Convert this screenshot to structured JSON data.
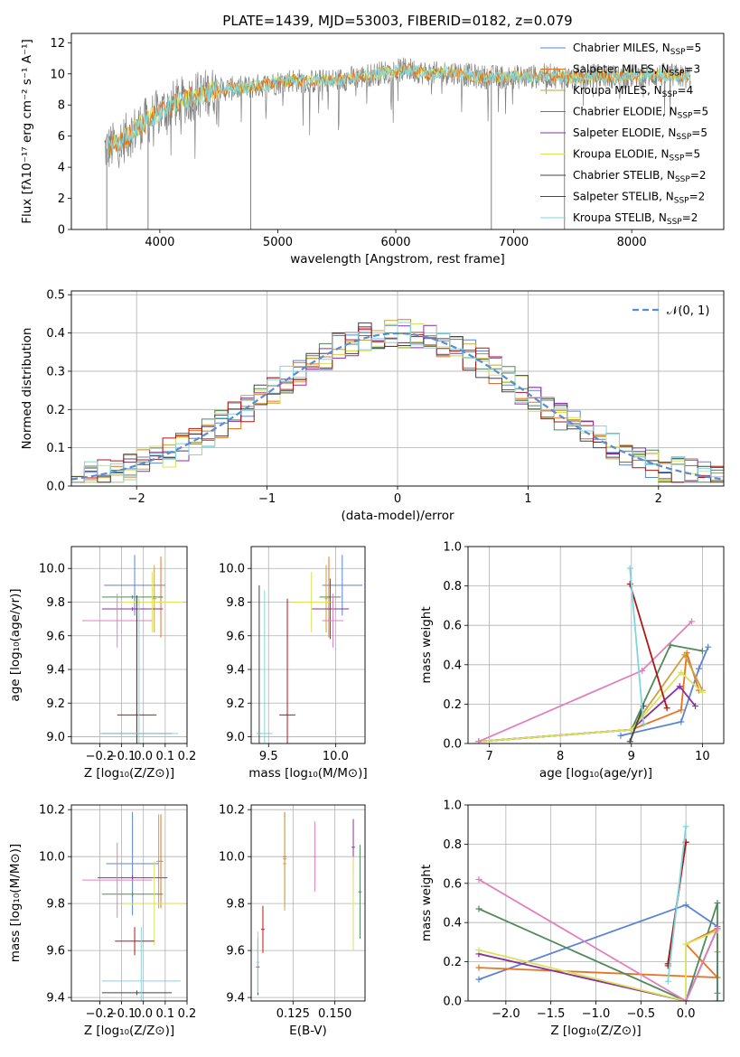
{
  "colors": {
    "Chabrier MILES": "#5b84d6",
    "Salpeter MILES": "#e8731d",
    "Kroupa MILES": "#c9a23f",
    "Chabrier ELODIE": "#4f8a5b",
    "Salpeter ELODIE": "#8b2fa6",
    "Kroupa ELODIE": "#d9e35a",
    "Chabrier STELIB": "#444444",
    "Salpeter STELIB": "#b01616",
    "Kroupa STELIB": "#7fd6dd",
    "pink": "#e07fbf",
    "gray_spectrum": "#808080",
    "grid": "#b0b0b0"
  },
  "chart_data": [
    {
      "id": "spectrum",
      "type": "line",
      "title": "PLATE=1439, MJD=53003, FIBERID=0182, z=0.079",
      "xlabel": "wavelength [Angstrom, rest frame]",
      "ylabel": "Flux [fλ10⁻¹⁷ erg cm⁻² s⁻¹ A⁻¹]",
      "xlim": [
        3250,
        8780
      ],
      "ylim": [
        0,
        12.6
      ],
      "xticks": [
        4000,
        5000,
        6000,
        7000,
        8000
      ],
      "yticks": [
        0,
        2,
        4,
        6,
        8,
        10,
        12
      ],
      "legend_position": "right",
      "legend": [
        {
          "text": "Chabrier MILES, N",
          "sub": "SSP",
          "tail": "=5"
        },
        {
          "text": "Salpeter MILES, N",
          "sub": "SSP",
          "tail": "=3"
        },
        {
          "text": "Kroupa MILES, N",
          "sub": "SSP",
          "tail": "=4"
        },
        {
          "text": "Chabrier ELODIE, N",
          "sub": "SSP",
          "tail": "=5"
        },
        {
          "text": "Salpeter ELODIE, N",
          "sub": "SSP",
          "tail": "=5"
        },
        {
          "text": "Kroupa ELODIE, N",
          "sub": "SSP",
          "tail": "=5"
        },
        {
          "text": "Chabrier STELIB, N",
          "sub": "SSP",
          "tail": "=2"
        },
        {
          "text": "Salpeter STELIB, N",
          "sub": "SSP",
          "tail": "=2"
        },
        {
          "text": "Kroupa STELIB, N",
          "sub": "SSP",
          "tail": "=2"
        }
      ],
      "continuum": [
        [
          3550,
          5.2
        ],
        [
          3650,
          5.5
        ],
        [
          3800,
          6.5
        ],
        [
          3950,
          7.3
        ],
        [
          4100,
          8.0
        ],
        [
          4300,
          8.6
        ],
        [
          4500,
          9.0
        ],
        [
          4700,
          9.1
        ],
        [
          4900,
          9.3
        ],
        [
          5100,
          9.6
        ],
        [
          5300,
          9.5
        ],
        [
          5500,
          9.6
        ],
        [
          5700,
          9.8
        ],
        [
          5900,
          10.1
        ],
        [
          6100,
          10.3
        ],
        [
          6300,
          10.0
        ],
        [
          6500,
          10.1
        ],
        [
          6700,
          9.8
        ],
        [
          6900,
          9.8
        ],
        [
          7100,
          9.8
        ],
        [
          7300,
          9.9
        ],
        [
          7500,
          9.7
        ],
        [
          7700,
          9.9
        ],
        [
          7900,
          9.8
        ],
        [
          8100,
          9.9
        ],
        [
          8300,
          9.9
        ],
        [
          8500,
          9.8
        ]
      ],
      "dips": [
        [
          3550,
          0
        ],
        [
          3900,
          0
        ],
        [
          4770,
          0
        ],
        [
          6810,
          0
        ],
        [
          7430,
          0
        ]
      ]
    },
    {
      "id": "residuals",
      "type": "line",
      "xlabel": "(data-model)/error",
      "ylabel": "Normed distribution",
      "xlim": [
        -2.5,
        2.5
      ],
      "ylim": [
        0,
        0.51
      ],
      "xticks": [
        -2,
        -1,
        0,
        1,
        2
      ],
      "yticks": [
        0.0,
        0.1,
        0.2,
        0.3,
        0.4,
        0.5
      ],
      "grid": true,
      "legend_position": "top-right",
      "legend": "𝒩(0, 1)",
      "gaussian": {
        "mean": 0,
        "sigma": 1
      }
    },
    {
      "id": "age_vs_Z",
      "type": "scatter",
      "xlabel": "Z [log₁₀(Z/Z⊙)]",
      "ylabel": "age  [log₁₀(age/yr)]",
      "xlim": [
        -0.33,
        0.2
      ],
      "ylim": [
        8.96,
        10.13
      ],
      "xticks": [
        -0.2,
        -0.1,
        0.0,
        0.1,
        0.2
      ],
      "yticks": [
        9.0,
        9.2,
        9.4,
        9.6,
        9.8,
        10.0
      ],
      "grid": true,
      "points": [
        {
          "s": "Chabrier MILES",
          "x": -0.04,
          "y": 9.9,
          "dx": 0.14,
          "dy": 0.18
        },
        {
          "s": "Salpeter MILES",
          "x": 0.08,
          "y": 9.83,
          "dx": 0.01,
          "dy": 0.24
        },
        {
          "s": "Kroupa MILES",
          "x": 0.05,
          "y": 9.82,
          "dx": 0.01,
          "dy": 0.2
        },
        {
          "s": "Chabrier ELODIE",
          "x": -0.05,
          "y": 9.83,
          "dx": 0.14,
          "dy": 0.01
        },
        {
          "s": "Salpeter ELODIE",
          "x": -0.05,
          "y": 9.76,
          "dx": 0.14,
          "dy": 0.01
        },
        {
          "s": "Kroupa ELODIE",
          "x": 0.04,
          "y": 9.8,
          "dx": 0.14,
          "dy": 0.18
        },
        {
          "s": "pink",
          "x": -0.12,
          "y": 9.69,
          "dx": 0.16,
          "dy": 0.16
        },
        {
          "s": "Chabrier STELIB",
          "x": -0.03,
          "y": 9.02,
          "dx": 0.16,
          "dy": 0.82
        },
        {
          "s": "Salpeter STELIB",
          "x": -0.03,
          "y": 9.13,
          "dx": 0.09,
          "dy": 0.69
        },
        {
          "s": "Kroupa STELIB",
          "x": -0.02,
          "y": 9.02,
          "dx": 0.18,
          "dy": 0.8
        }
      ]
    },
    {
      "id": "age_vs_mass",
      "type": "scatter",
      "xlabel": "mass [log₁₀(M/M⊙)]",
      "xlim": [
        9.37,
        10.22
      ],
      "ylim": [
        8.96,
        10.13
      ],
      "xticks": [
        9.5,
        10.0
      ],
      "yticks": [
        9.0,
        9.2,
        9.4,
        9.6,
        9.8,
        10.0
      ],
      "grid": true,
      "points": [
        {
          "s": "Chabrier MILES",
          "x": 10.05,
          "y": 9.9,
          "dx": 0.15,
          "dy": 0.18
        },
        {
          "s": "Salpeter MILES",
          "x": 9.95,
          "y": 9.83,
          "dx": 0.01,
          "dy": 0.24
        },
        {
          "s": "Kroupa MILES",
          "x": 9.93,
          "y": 9.82,
          "dx": 0.01,
          "dy": 0.2
        },
        {
          "s": "Chabrier ELODIE",
          "x": 9.96,
          "y": 9.83,
          "dx": 0.08,
          "dy": 0.01
        },
        {
          "s": "Salpeter ELODIE",
          "x": 9.96,
          "y": 9.76,
          "dx": 0.14,
          "dy": 0.18
        },
        {
          "s": "Kroupa ELODIE",
          "x": 9.82,
          "y": 9.8,
          "dx": 0.14,
          "dy": 0.18
        },
        {
          "s": "pink",
          "x": 9.98,
          "y": 9.69,
          "dx": 0.08,
          "dy": 0.16
        },
        {
          "s": "Chabrier STELIB",
          "x": 9.43,
          "y": 9.02,
          "dx": 0.01,
          "dy": 0.88
        },
        {
          "s": "Salpeter STELIB",
          "x": 9.64,
          "y": 9.13,
          "dx": 0.06,
          "dy": 0.69
        },
        {
          "s": "Kroupa STELIB",
          "x": 9.47,
          "y": 9.02,
          "dx": 0.06,
          "dy": 0.85
        }
      ]
    },
    {
      "id": "weight_vs_age",
      "type": "line",
      "xlabel": "age  [log₁₀(age/yr)]",
      "ylabel": "mass weight",
      "xlim": [
        6.7,
        10.3
      ],
      "ylim": [
        0,
        1
      ],
      "xticks": [
        7,
        8,
        9,
        10
      ],
      "yticks": [
        0.0,
        0.2,
        0.4,
        0.6,
        0.8,
        1.0
      ],
      "grid": true,
      "series": [
        {
          "s": "Chabrier MILES",
          "x": [
            8.85,
            9.7,
            9.95,
            10.08
          ],
          "y": [
            0.04,
            0.11,
            0.38,
            0.49
          ]
        },
        {
          "s": "Salpeter MILES",
          "x": [
            6.85,
            9.0,
            9.7,
            9.78,
            9.95
          ],
          "y": [
            0.01,
            0.07,
            0.17,
            0.46,
            0.27
          ]
        },
        {
          "s": "Kroupa MILES",
          "x": [
            6.85,
            9.0,
            9.75,
            10.0
          ],
          "y": [
            0.01,
            0.07,
            0.45,
            0.27
          ]
        },
        {
          "s": "Chabrier ELODIE",
          "x": [
            6.85,
            9.0,
            9.55,
            10.0
          ],
          "y": [
            0.01,
            0.07,
            0.5,
            0.47
          ]
        },
        {
          "s": "Salpeter ELODIE",
          "x": [
            6.85,
            9.0,
            9.68,
            9.9
          ],
          "y": [
            0.01,
            0.07,
            0.29,
            0.19
          ]
        },
        {
          "s": "Kroupa ELODIE",
          "x": [
            6.85,
            9.0,
            9.7,
            10.0
          ],
          "y": [
            0.01,
            0.07,
            0.36,
            0.26
          ]
        },
        {
          "s": "pink",
          "x": [
            6.85,
            9.15,
            9.85
          ],
          "y": [
            0.01,
            0.37,
            0.62
          ]
        },
        {
          "s": "Chabrier STELIB",
          "x": [
            8.98,
            9.17
          ],
          "y": [
            0.01,
            0.19
          ]
        },
        {
          "s": "Salpeter STELIB",
          "x": [
            8.98,
            9.5
          ],
          "y": [
            0.81,
            0.18
          ]
        },
        {
          "s": "Kroupa STELIB",
          "x": [
            8.98,
            9.17
          ],
          "y": [
            0.89,
            0.1
          ]
        }
      ]
    },
    {
      "id": "mass_vs_Z",
      "type": "scatter",
      "xlabel": "Z [log₁₀(Z/Z⊙)]",
      "ylabel": "mass [log₁₀(M/M⊙)]",
      "xlim": [
        -0.33,
        0.2
      ],
      "ylim": [
        9.385,
        10.22
      ],
      "xticks": [
        -0.2,
        -0.1,
        0.0,
        0.1,
        0.2
      ],
      "yticks": [
        9.4,
        9.6,
        9.8,
        10.0,
        10.2
      ],
      "grid": true,
      "points": [
        {
          "s": "Chabrier MILES",
          "x": -0.05,
          "y": 9.97,
          "dx": 0.12,
          "dy": 0.22
        },
        {
          "s": "Salpeter MILES",
          "x": 0.08,
          "y": 9.98,
          "dx": 0.01,
          "dy": 0.2
        },
        {
          "s": "Kroupa MILES",
          "x": 0.07,
          "y": 9.98,
          "dx": 0.01,
          "dy": 0.2
        },
        {
          "s": "Chabrier ELODIE",
          "x": -0.05,
          "y": 9.84,
          "dx": 0.14,
          "dy": 0.01
        },
        {
          "s": "Salpeter ELODIE",
          "x": -0.05,
          "y": 9.91,
          "dx": 0.16,
          "dy": 0.01
        },
        {
          "s": "Kroupa ELODIE",
          "x": 0.05,
          "y": 9.8,
          "dx": 0.14,
          "dy": 0.18
        },
        {
          "s": "pink",
          "x": -0.12,
          "y": 9.9,
          "dx": 0.16,
          "dy": 0.16
        },
        {
          "s": "Chabrier STELIB",
          "x": -0.03,
          "y": 9.42,
          "dx": 0.16,
          "dy": 0.01
        },
        {
          "s": "Salpeter STELIB",
          "x": -0.04,
          "y": 9.64,
          "dx": 0.09,
          "dy": 0.06
        },
        {
          "s": "Kroupa STELIB",
          "x": -0.01,
          "y": 9.47,
          "dx": 0.18,
          "dy": 0.23
        }
      ]
    },
    {
      "id": "mass_vs_EBV",
      "type": "scatter",
      "xlabel": "E(B-V)",
      "xlim": [
        0.1,
        0.168
      ],
      "ylim": [
        9.385,
        10.22
      ],
      "xticks": [
        0.125,
        0.15
      ],
      "yticks": [
        9.4,
        9.6,
        9.8,
        10.0,
        10.2
      ],
      "grid": true,
      "points": [
        {
          "s": "Chabrier MILES",
          "x": 0.12,
          "y": 10.0,
          "dx": 0.001,
          "dy": 0.18
        },
        {
          "s": "Salpeter MILES",
          "x": 0.12,
          "y": 9.99,
          "dx": 0.001,
          "dy": 0.2
        },
        {
          "s": "Kroupa MILES",
          "x": 0.12,
          "y": 9.97,
          "dx": 0.001,
          "dy": 0.2
        },
        {
          "s": "Chabrier ELODIE",
          "x": 0.165,
          "y": 9.85,
          "dx": 0.001,
          "dy": 0.2
        },
        {
          "s": "Salpeter ELODIE",
          "x": 0.161,
          "y": 10.04,
          "dx": 0.001,
          "dy": 0.12
        },
        {
          "s": "Kroupa ELODIE",
          "x": 0.161,
          "y": 9.8,
          "dx": 0.001,
          "dy": 0.2
        },
        {
          "s": "pink",
          "x": 0.138,
          "y": 10.0,
          "dx": 0.001,
          "dy": 0.15
        },
        {
          "s": "Chabrier STELIB",
          "x": 0.104,
          "y": 9.53,
          "dx": 0.001,
          "dy": 0.12
        },
        {
          "s": "Salpeter STELIB",
          "x": 0.107,
          "y": 9.69,
          "dx": 0.001,
          "dy": 0.1
        },
        {
          "s": "Kroupa STELIB",
          "x": 0.104,
          "y": 9.55,
          "dx": 0.001,
          "dy": 0.13
        }
      ]
    },
    {
      "id": "weight_vs_Z",
      "type": "line",
      "xlabel": "Z [log₁₀(Z/Z⊙)]",
      "ylabel": "mass weight",
      "xlim": [
        -2.42,
        0.42
      ],
      "ylim": [
        0,
        1
      ],
      "xticks": [
        -2.0,
        -1.5,
        -1.0,
        -0.5,
        0.0
      ],
      "yticks": [
        0.0,
        0.2,
        0.4,
        0.6,
        0.8,
        1.0
      ],
      "grid": true,
      "series": [
        {
          "s": "Chabrier MILES",
          "x": [
            -2.3,
            0.0,
            0.35,
            0.35
          ],
          "y": [
            0.11,
            0.49,
            0.38,
            0.04
          ]
        },
        {
          "s": "Salpeter MILES",
          "x": [
            -2.3,
            0.35,
            0.0,
            0.35
          ],
          "y": [
            0.17,
            0.12,
            0.29,
            0.37
          ]
        },
        {
          "s": "Kroupa MILES",
          "x": [
            -2.3,
            0.0,
            0.35,
            0.35
          ],
          "y": [
            0.24,
            0.0,
            0.37,
            0.25
          ]
        },
        {
          "s": "Chabrier ELODIE",
          "x": [
            -2.3,
            0.0,
            0.35,
            0.35
          ],
          "y": [
            0.47,
            0.0,
            0.5,
            0.0
          ]
        },
        {
          "s": "Salpeter ELODIE",
          "x": [
            -2.3,
            0.0,
            0.35
          ],
          "y": [
            0.24,
            0.0,
            0.37
          ]
        },
        {
          "s": "Kroupa ELODIE",
          "x": [
            -2.3,
            0.0,
            0.0,
            0.35
          ],
          "y": [
            0.26,
            0.0,
            0.29,
            0.36
          ]
        },
        {
          "s": "pink",
          "x": [
            -2.3,
            0.0,
            0.35
          ],
          "y": [
            0.62,
            0.0,
            0.37
          ]
        },
        {
          "s": "Chabrier STELIB",
          "x": [
            -0.2,
            0.0
          ],
          "y": [
            0.19,
            0.81
          ]
        },
        {
          "s": "Salpeter STELIB",
          "x": [
            -0.2,
            0.0
          ],
          "y": [
            0.18,
            0.81
          ]
        },
        {
          "s": "Kroupa STELIB",
          "x": [
            -0.2,
            0.0
          ],
          "y": [
            0.1,
            0.89
          ]
        }
      ]
    }
  ]
}
